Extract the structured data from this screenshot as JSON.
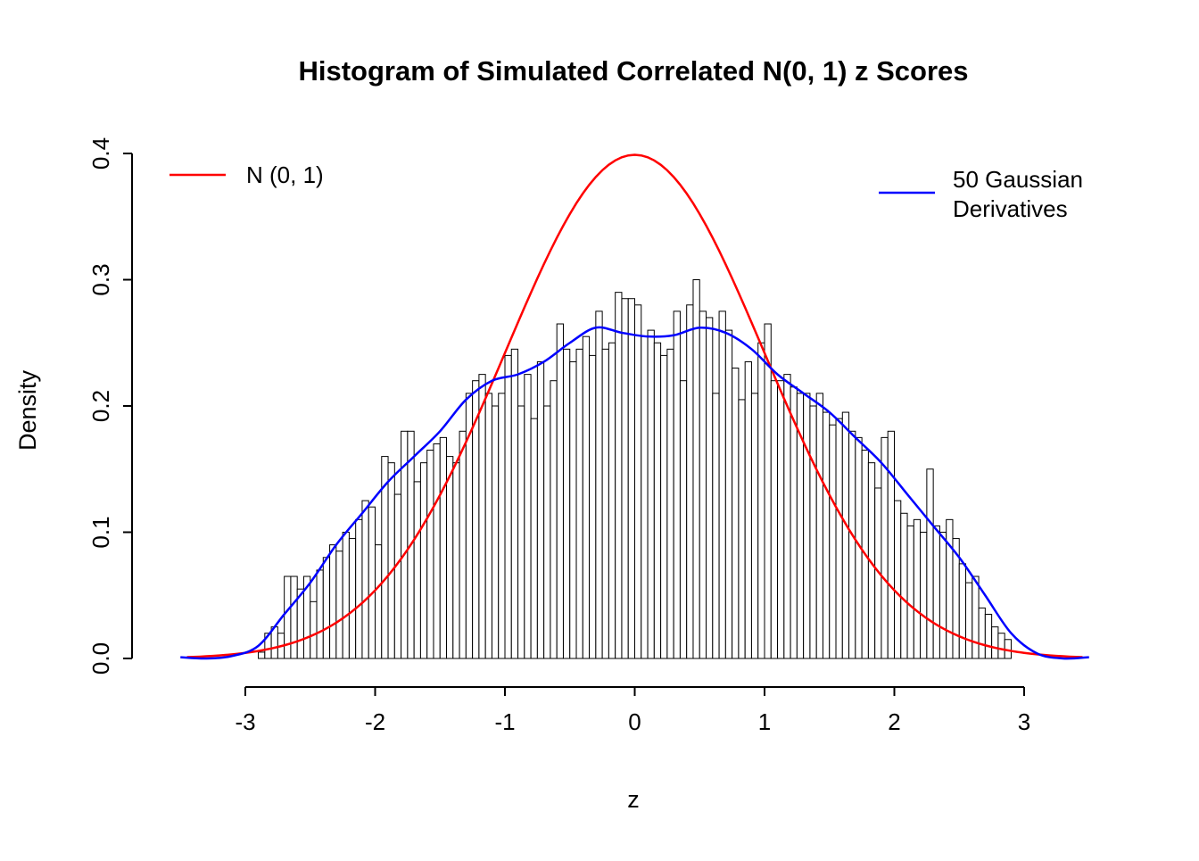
{
  "chart_data": {
    "type": "bar",
    "subtype": "histogram-with-density-curves",
    "title": "Histogram of Simulated Correlated N(0, 1) z Scores",
    "xlabel": "z",
    "ylabel": "Density",
    "xlim": [
      -3.5,
      3.5
    ],
    "ylim": [
      0,
      0.4
    ],
    "x_ticks": [
      -3,
      -2,
      -1,
      0,
      1,
      2,
      3
    ],
    "x_tick_labels": [
      "-3",
      "-2",
      "-1",
      "0",
      "1",
      "2",
      "3"
    ],
    "y_ticks": [
      0.0,
      0.1,
      0.2,
      0.3,
      0.4
    ],
    "y_tick_labels": [
      "0.0",
      "0.1",
      "0.2",
      "0.3",
      "0.4"
    ],
    "grid": "off",
    "histogram": {
      "bin_start": -2.9,
      "bin_width": 0.05,
      "bar_fill": "#FFFFFF",
      "bar_stroke": "#000000",
      "densities": [
        0.005,
        0.02,
        0.025,
        0.02,
        0.065,
        0.065,
        0.055,
        0.065,
        0.045,
        0.07,
        0.08,
        0.09,
        0.085,
        0.1,
        0.095,
        0.11,
        0.125,
        0.12,
        0.09,
        0.16,
        0.155,
        0.13,
        0.18,
        0.18,
        0.14,
        0.155,
        0.165,
        0.17,
        0.175,
        0.16,
        0.155,
        0.18,
        0.21,
        0.22,
        0.225,
        0.21,
        0.2,
        0.21,
        0.24,
        0.245,
        0.2,
        0.225,
        0.19,
        0.235,
        0.2,
        0.22,
        0.265,
        0.245,
        0.235,
        0.245,
        0.255,
        0.24,
        0.275,
        0.245,
        0.25,
        0.29,
        0.285,
        0.285,
        0.28,
        0.255,
        0.26,
        0.25,
        0.24,
        0.245,
        0.275,
        0.22,
        0.28,
        0.3,
        0.275,
        0.27,
        0.21,
        0.275,
        0.26,
        0.23,
        0.205,
        0.235,
        0.21,
        0.25,
        0.265,
        0.22,
        0.22,
        0.225,
        0.215,
        0.21,
        0.21,
        0.2,
        0.21,
        0.195,
        0.185,
        0.19,
        0.195,
        0.18,
        0.175,
        0.165,
        0.155,
        0.135,
        0.175,
        0.18,
        0.125,
        0.115,
        0.105,
        0.11,
        0.1,
        0.15,
        0.105,
        0.1,
        0.11,
        0.095,
        0.075,
        0.06,
        0.065,
        0.04,
        0.035,
        0.025,
        0.02,
        0.015
      ]
    },
    "curves": [
      {
        "name": "standard-normal",
        "label": "N (0, 1)",
        "color": "#FF0000",
        "model": "standard_normal_pdf",
        "peak_density": 0.3989,
        "range": [
          -3.45,
          3.45
        ]
      },
      {
        "name": "gaussian-derivatives",
        "label_lines": [
          "50 Gaussian",
          "Derivatives"
        ],
        "color": "#0000FF",
        "points": [
          [
            -3.5,
            0.001
          ],
          [
            -3.3,
            0.0
          ],
          [
            -3.1,
            0.002
          ],
          [
            -2.9,
            0.01
          ],
          [
            -2.7,
            0.035
          ],
          [
            -2.5,
            0.06
          ],
          [
            -2.3,
            0.09
          ],
          [
            -2.1,
            0.115
          ],
          [
            -1.9,
            0.14
          ],
          [
            -1.7,
            0.16
          ],
          [
            -1.5,
            0.18
          ],
          [
            -1.3,
            0.205
          ],
          [
            -1.1,
            0.22
          ],
          [
            -0.9,
            0.225
          ],
          [
            -0.7,
            0.235
          ],
          [
            -0.5,
            0.25
          ],
          [
            -0.3,
            0.262
          ],
          [
            -0.1,
            0.258
          ],
          [
            0.1,
            0.255
          ],
          [
            0.3,
            0.256
          ],
          [
            0.5,
            0.262
          ],
          [
            0.7,
            0.258
          ],
          [
            0.9,
            0.245
          ],
          [
            1.1,
            0.225
          ],
          [
            1.3,
            0.21
          ],
          [
            1.5,
            0.195
          ],
          [
            1.7,
            0.175
          ],
          [
            1.9,
            0.155
          ],
          [
            2.1,
            0.13
          ],
          [
            2.3,
            0.105
          ],
          [
            2.5,
            0.08
          ],
          [
            2.7,
            0.05
          ],
          [
            2.9,
            0.02
          ],
          [
            3.1,
            0.004
          ],
          [
            3.3,
            0.0
          ],
          [
            3.5,
            0.001
          ]
        ]
      }
    ],
    "legend": {
      "position": "top-inside",
      "entries": [
        {
          "label": "N (0, 1)",
          "color": "#FF0000"
        },
        {
          "label": "50 Gaussian Derivatives",
          "color": "#0000FF"
        }
      ]
    }
  }
}
